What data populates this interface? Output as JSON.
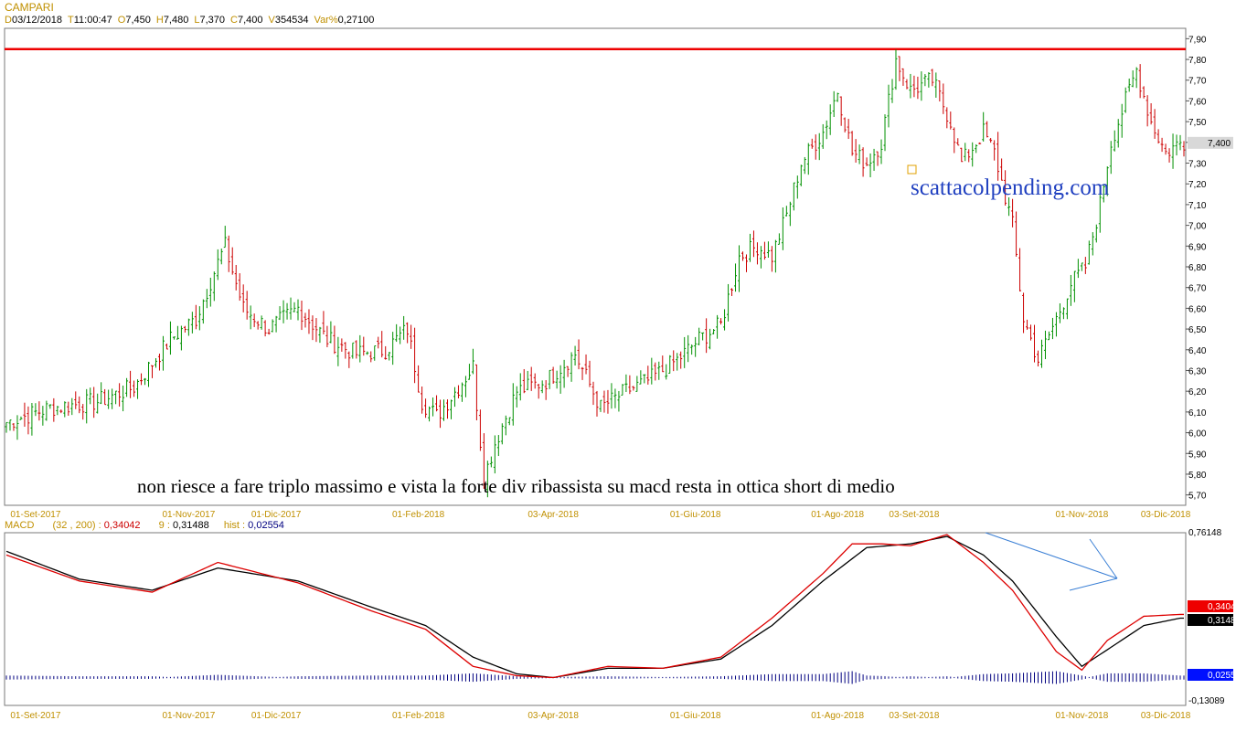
{
  "header": {
    "title": "CAMPARI",
    "fields": [
      {
        "k": "D",
        "v": "03/12/2018"
      },
      {
        "k": "T",
        "v": "11:00:47"
      },
      {
        "k": "O",
        "v": "7,450"
      },
      {
        "k": "H",
        "v": "7,480"
      },
      {
        "k": "L",
        "v": "7,370"
      },
      {
        "k": "C",
        "v": "7,400"
      },
      {
        "k": "V",
        "v": "354534"
      },
      {
        "k": "Var%",
        "v": "0,27100"
      }
    ]
  },
  "macd_header": {
    "label": "MACD",
    "params": "(32 , 200)",
    "macd_value": "0,34042",
    "signal_label": "9",
    "signal_value": "0,31488",
    "hist_label": "hist",
    "hist_value": "0,02554"
  },
  "annotation": "non riesce a fare triplo massimo e vista la forte div ribassista su macd resta in ottica short di medio",
  "watermark": "scattacolpending.com",
  "colors": {
    "up": "#009000",
    "down": "#cc0000",
    "resistance": "#ee0000",
    "macd": "#dd0000",
    "signal": "#000000",
    "hist": "#000080",
    "arrow": "#3a7fd5",
    "date_label": "#c09000"
  },
  "chart_data": [
    {
      "type": "candlestick",
      "title": "CAMPARI",
      "ylim": [
        5.65,
        7.95
      ],
      "y_ticks": [
        "7,90",
        "7,80",
        "7,70",
        "7,60",
        "7,50",
        "7,40",
        "7,30",
        "7,20",
        "7,10",
        "7,00",
        "6,90",
        "6,80",
        "6,70",
        "6,60",
        "6,50",
        "6,40",
        "6,30",
        "6,20",
        "6,10",
        "6,00",
        "5,90",
        "5,80",
        "5,70"
      ],
      "x_ticks": [
        "01-Set-2017",
        "01-Nov-2017",
        "01-Dic-2017",
        "01-Feb-2018",
        "03-Apr-2018",
        "01-Giu-2018",
        "01-Ago-2018",
        "03-Set-2018",
        "01-Nov-2018",
        "03-Dic-2018"
      ],
      "last_price_label": "7,400",
      "resistance_level": 7.85,
      "close_anchors": [
        [
          0,
          6.05
        ],
        [
          12,
          6.12
        ],
        [
          25,
          6.15
        ],
        [
          35,
          6.22
        ],
        [
          45,
          6.45
        ],
        [
          52,
          6.55
        ],
        [
          58,
          6.82
        ],
        [
          60,
          6.9
        ],
        [
          65,
          6.6
        ],
        [
          72,
          6.5
        ],
        [
          80,
          6.6
        ],
        [
          88,
          6.45
        ],
        [
          96,
          6.38
        ],
        [
          104,
          6.4
        ],
        [
          110,
          6.5
        ],
        [
          114,
          6.15
        ],
        [
          118,
          6.08
        ],
        [
          124,
          6.22
        ],
        [
          128,
          6.32
        ],
        [
          131,
          5.78
        ],
        [
          134,
          5.95
        ],
        [
          140,
          6.2
        ],
        [
          148,
          6.25
        ],
        [
          156,
          6.38
        ],
        [
          163,
          6.12
        ],
        [
          170,
          6.2
        ],
        [
          176,
          6.25
        ],
        [
          184,
          6.35
        ],
        [
          190,
          6.45
        ],
        [
          196,
          6.52
        ],
        [
          201,
          6.85
        ],
        [
          206,
          6.9
        ],
        [
          210,
          6.85
        ],
        [
          214,
          7.05
        ],
        [
          218,
          7.3
        ],
        [
          224,
          7.45
        ],
        [
          228,
          7.65
        ],
        [
          232,
          7.35
        ],
        [
          236,
          7.3
        ],
        [
          240,
          7.4
        ],
        [
          244,
          7.8
        ],
        [
          248,
          7.65
        ],
        [
          254,
          7.7
        ],
        [
          259,
          7.5
        ],
        [
          262,
          7.3
        ],
        [
          268,
          7.45
        ],
        [
          271,
          7.35
        ],
        [
          276,
          7.0
        ],
        [
          279,
          6.55
        ],
        [
          283,
          6.35
        ],
        [
          288,
          6.55
        ],
        [
          292,
          6.72
        ],
        [
          296,
          6.8
        ],
        [
          300,
          7.1
        ],
        [
          303,
          7.4
        ],
        [
          308,
          7.65
        ],
        [
          310,
          7.75
        ],
        [
          314,
          7.5
        ],
        [
          318,
          7.35
        ],
        [
          322,
          7.4
        ]
      ]
    },
    {
      "type": "macd",
      "series": [
        {
          "name": "MACD (32 , 200)",
          "last": 0.34042
        },
        {
          "name": "9",
          "last": 0.31488
        },
        {
          "name": "hist",
          "last": 0.02554
        }
      ],
      "ylim": [
        -0.15,
        0.78
      ],
      "y_ticks": [
        "0,76148",
        "-0,13089"
      ],
      "value_labels": [
        "0,34042",
        "0,31488",
        "0,02554"
      ],
      "signal_anchors": [
        [
          0,
          0.68
        ],
        [
          20,
          0.53
        ],
        [
          40,
          0.47
        ],
        [
          58,
          0.59
        ],
        [
          80,
          0.52
        ],
        [
          100,
          0.38
        ],
        [
          115,
          0.28
        ],
        [
          128,
          0.11
        ],
        [
          140,
          0.02
        ],
        [
          150,
          0.0
        ],
        [
          165,
          0.05
        ],
        [
          180,
          0.05
        ],
        [
          196,
          0.1
        ],
        [
          210,
          0.28
        ],
        [
          224,
          0.52
        ],
        [
          236,
          0.7
        ],
        [
          248,
          0.72
        ],
        [
          258,
          0.76
        ],
        [
          268,
          0.66
        ],
        [
          276,
          0.52
        ],
        [
          288,
          0.22
        ],
        [
          295,
          0.06
        ],
        [
          302,
          0.15
        ],
        [
          312,
          0.28
        ],
        [
          322,
          0.32
        ]
      ],
      "macd_anchors": [
        [
          0,
          0.66
        ],
        [
          20,
          0.52
        ],
        [
          40,
          0.46
        ],
        [
          58,
          0.62
        ],
        [
          80,
          0.51
        ],
        [
          100,
          0.36
        ],
        [
          115,
          0.26
        ],
        [
          128,
          0.06
        ],
        [
          140,
          0.01
        ],
        [
          150,
          0.0
        ],
        [
          165,
          0.06
        ],
        [
          180,
          0.05
        ],
        [
          196,
          0.11
        ],
        [
          210,
          0.32
        ],
        [
          224,
          0.56
        ],
        [
          232,
          0.72
        ],
        [
          240,
          0.72
        ],
        [
          248,
          0.71
        ],
        [
          258,
          0.77
        ],
        [
          268,
          0.62
        ],
        [
          276,
          0.47
        ],
        [
          288,
          0.14
        ],
        [
          295,
          0.04
        ],
        [
          302,
          0.2
        ],
        [
          312,
          0.33
        ],
        [
          322,
          0.34
        ]
      ]
    }
  ]
}
